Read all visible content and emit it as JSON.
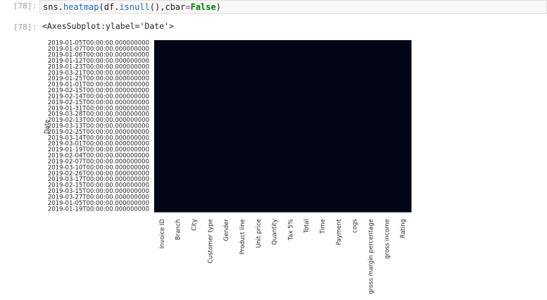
{
  "input_cell": {
    "prompt": "[78]:",
    "code_tokens": [
      "sns",
      ".",
      "heatmap",
      "(",
      "df",
      ".",
      "isnull",
      "(),",
      "cbar",
      "=",
      "False",
      ")"
    ]
  },
  "output_cell": {
    "prompt": "[78]:",
    "text": "<AxesSubplot:ylabel='Date'>"
  },
  "chart_data": {
    "type": "heatmap",
    "ylabel": "Date",
    "color": "#020617",
    "x_categories": [
      "Invoice ID",
      "Branch",
      "City",
      "Customer type",
      "Gender",
      "Product line",
      "Unit price",
      "Quantity",
      "Tax 5%",
      "Total",
      "Time",
      "Payment",
      "cogs",
      "gross margin percentage",
      "gross income",
      "Rating"
    ],
    "y_categories": [
      "2019-01-05T00:00:00.000000000",
      "2019-01-07T00:00:00.000000000",
      "2019-01-06T00:00:00.000000000",
      "2019-01-12T00:00:00.000000000",
      "2019-01-23T00:00:00.000000000",
      "2019-03-21T00:00:00.000000000",
      "2019-01-25T00:00:00.000000000",
      "2019-01-01T00:00:00.000000000",
      "2019-02-15T00:00:00.000000000",
      "2019-02-14T00:00:00.000000000",
      "2019-02-15T00:00:00.000000000",
      "2019-01-31T00:00:00.000000000",
      "2019-03-28T00:00:00.000000000",
      "2019-02-13T00:00:00.000000000",
      "2019-03-13T00:00:00.000000000",
      "2019-02-25T00:00:00.000000000",
      "2019-03-14T00:00:00.000000000",
      "2019-03-01T00:00:00.000000000",
      "2019-01-19T00:00:00.000000000",
      "2019-02-04T00:00:00.000000000",
      "2019-02-07T00:00:00.000000000",
      "2019-03-10T00:00:00.000000000",
      "2019-02-26T00:00:00.000000000",
      "2019-03-17T00:00:00.000000000",
      "2019-02-15T00:00:00.000000000",
      "2019-03-15T00:00:00.000000000",
      "2019-03-27T00:00:00.000000000",
      "2019-01-05T00:00:00.000000000",
      "2019-01-19T00:00:00.000000000"
    ],
    "values": [
      [
        0,
        0,
        0,
        0,
        0,
        0,
        0,
        0,
        0,
        0,
        0,
        0,
        0,
        0,
        0,
        0
      ],
      [
        0,
        0,
        0,
        0,
        0,
        0,
        0,
        0,
        0,
        0,
        0,
        0,
        0,
        0,
        0,
        0
      ],
      [
        0,
        0,
        0,
        0,
        0,
        0,
        0,
        0,
        0,
        0,
        0,
        0,
        0,
        0,
        0,
        0
      ],
      [
        0,
        0,
        0,
        0,
        0,
        0,
        0,
        0,
        0,
        0,
        0,
        0,
        0,
        0,
        0,
        0
      ],
      [
        0,
        0,
        0,
        0,
        0,
        0,
        0,
        0,
        0,
        0,
        0,
        0,
        0,
        0,
        0,
        0
      ],
      [
        0,
        0,
        0,
        0,
        0,
        0,
        0,
        0,
        0,
        0,
        0,
        0,
        0,
        0,
        0,
        0
      ],
      [
        0,
        0,
        0,
        0,
        0,
        0,
        0,
        0,
        0,
        0,
        0,
        0,
        0,
        0,
        0,
        0
      ],
      [
        0,
        0,
        0,
        0,
        0,
        0,
        0,
        0,
        0,
        0,
        0,
        0,
        0,
        0,
        0,
        0
      ],
      [
        0,
        0,
        0,
        0,
        0,
        0,
        0,
        0,
        0,
        0,
        0,
        0,
        0,
        0,
        0,
        0
      ],
      [
        0,
        0,
        0,
        0,
        0,
        0,
        0,
        0,
        0,
        0,
        0,
        0,
        0,
        0,
        0,
        0
      ],
      [
        0,
        0,
        0,
        0,
        0,
        0,
        0,
        0,
        0,
        0,
        0,
        0,
        0,
        0,
        0,
        0
      ],
      [
        0,
        0,
        0,
        0,
        0,
        0,
        0,
        0,
        0,
        0,
        0,
        0,
        0,
        0,
        0,
        0
      ],
      [
        0,
        0,
        0,
        0,
        0,
        0,
        0,
        0,
        0,
        0,
        0,
        0,
        0,
        0,
        0,
        0
      ],
      [
        0,
        0,
        0,
        0,
        0,
        0,
        0,
        0,
        0,
        0,
        0,
        0,
        0,
        0,
        0,
        0
      ],
      [
        0,
        0,
        0,
        0,
        0,
        0,
        0,
        0,
        0,
        0,
        0,
        0,
        0,
        0,
        0,
        0
      ],
      [
        0,
        0,
        0,
        0,
        0,
        0,
        0,
        0,
        0,
        0,
        0,
        0,
        0,
        0,
        0,
        0
      ],
      [
        0,
        0,
        0,
        0,
        0,
        0,
        0,
        0,
        0,
        0,
        0,
        0,
        0,
        0,
        0,
        0
      ],
      [
        0,
        0,
        0,
        0,
        0,
        0,
        0,
        0,
        0,
        0,
        0,
        0,
        0,
        0,
        0,
        0
      ],
      [
        0,
        0,
        0,
        0,
        0,
        0,
        0,
        0,
        0,
        0,
        0,
        0,
        0,
        0,
        0,
        0
      ],
      [
        0,
        0,
        0,
        0,
        0,
        0,
        0,
        0,
        0,
        0,
        0,
        0,
        0,
        0,
        0,
        0
      ],
      [
        0,
        0,
        0,
        0,
        0,
        0,
        0,
        0,
        0,
        0,
        0,
        0,
        0,
        0,
        0,
        0
      ],
      [
        0,
        0,
        0,
        0,
        0,
        0,
        0,
        0,
        0,
        0,
        0,
        0,
        0,
        0,
        0,
        0
      ],
      [
        0,
        0,
        0,
        0,
        0,
        0,
        0,
        0,
        0,
        0,
        0,
        0,
        0,
        0,
        0,
        0
      ],
      [
        0,
        0,
        0,
        0,
        0,
        0,
        0,
        0,
        0,
        0,
        0,
        0,
        0,
        0,
        0,
        0
      ],
      [
        0,
        0,
        0,
        0,
        0,
        0,
        0,
        0,
        0,
        0,
        0,
        0,
        0,
        0,
        0,
        0
      ],
      [
        0,
        0,
        0,
        0,
        0,
        0,
        0,
        0,
        0,
        0,
        0,
        0,
        0,
        0,
        0,
        0
      ],
      [
        0,
        0,
        0,
        0,
        0,
        0,
        0,
        0,
        0,
        0,
        0,
        0,
        0,
        0,
        0,
        0
      ],
      [
        0,
        0,
        0,
        0,
        0,
        0,
        0,
        0,
        0,
        0,
        0,
        0,
        0,
        0,
        0,
        0
      ],
      [
        0,
        0,
        0,
        0,
        0,
        0,
        0,
        0,
        0,
        0,
        0,
        0,
        0,
        0,
        0,
        0
      ]
    ]
  }
}
